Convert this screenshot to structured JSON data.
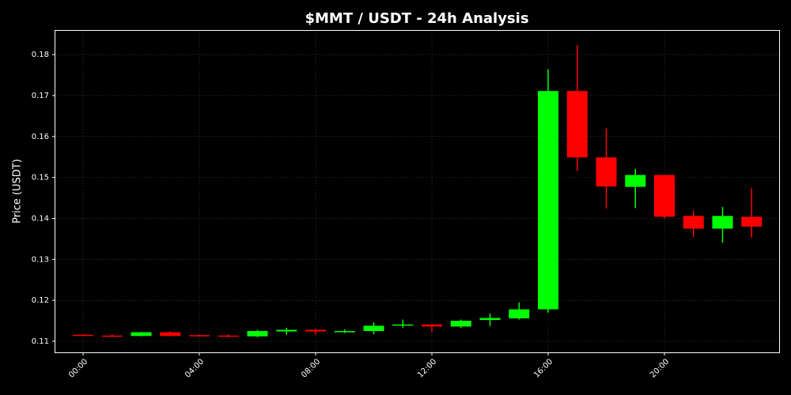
{
  "chart_data": {
    "type": "candlestick",
    "title": "$MMT / USDT - 24h Analysis",
    "y_label": "Price (USDT)",
    "categories": [
      "00:00",
      null,
      null,
      null,
      "04:00",
      null,
      null,
      null,
      "08:00",
      null,
      null,
      null,
      "12:00",
      null,
      null,
      null,
      "16:00",
      null,
      null,
      null,
      "20:00",
      null,
      null,
      null
    ],
    "open": [
      0.1116,
      0.1114,
      0.1113,
      0.1122,
      0.1115,
      0.1114,
      0.1112,
      0.1124,
      0.1128,
      0.1122,
      0.1125,
      0.114,
      0.1141,
      0.1136,
      0.1152,
      0.1156,
      0.1178,
      0.1711,
      0.1549,
      0.1477,
      0.1506,
      0.1406,
      0.1375,
      0.1404
    ],
    "high": [
      0.1118,
      0.1117,
      0.1123,
      0.1124,
      0.1117,
      0.1117,
      0.1128,
      0.1133,
      0.113,
      0.1129,
      0.1146,
      0.1153,
      0.1142,
      0.1153,
      0.1168,
      0.1195,
      0.1764,
      0.1823,
      0.162,
      0.1521,
      0.1506,
      0.1419,
      0.1428,
      0.1474
    ],
    "low": [
      0.1114,
      0.1112,
      0.1112,
      0.1112,
      0.1111,
      0.111,
      0.111,
      0.1116,
      0.1116,
      0.112,
      0.1117,
      0.1133,
      0.1122,
      0.1133,
      0.1137,
      0.1153,
      0.117,
      0.1516,
      0.1424,
      0.1425,
      0.1399,
      0.1355,
      0.1341,
      0.1353
    ],
    "close": [
      0.1115,
      0.1113,
      0.1122,
      0.1113,
      0.1113,
      0.1113,
      0.1125,
      0.1128,
      0.1124,
      0.1125,
      0.1138,
      0.1141,
      0.1136,
      0.115,
      0.1157,
      0.1178,
      0.1711,
      0.1549,
      0.1478,
      0.1506,
      0.1404,
      0.1375,
      0.1406,
      0.138
    ],
    "up_color": "#00ff00",
    "down_color": "#ff0000",
    "ylim": [
      0.1073,
      0.1858
    ],
    "yticks": [
      0.11,
      0.12,
      0.13,
      0.14,
      0.15,
      0.16,
      0.17,
      0.18
    ],
    "grid": true
  }
}
